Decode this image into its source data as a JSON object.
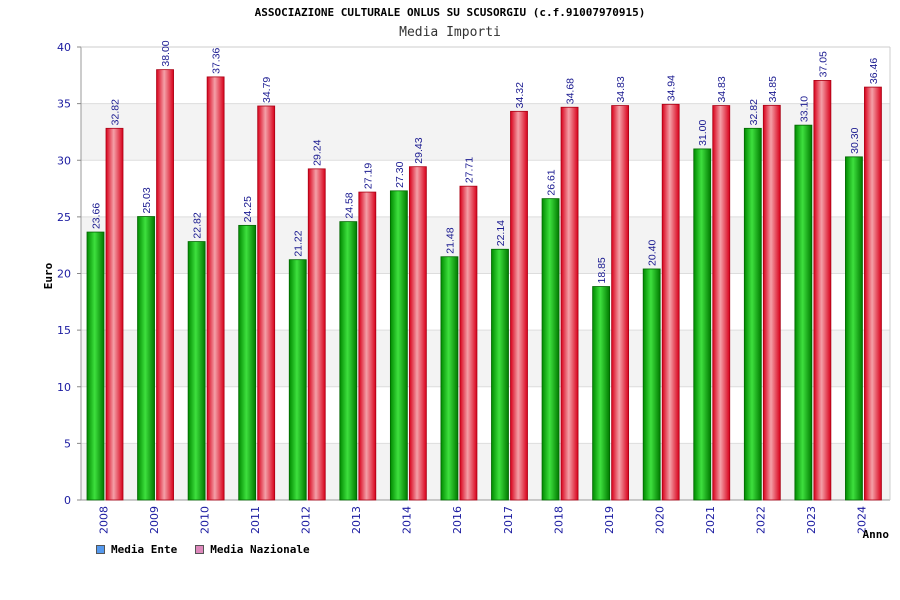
{
  "chart_data": {
    "type": "bar",
    "title": "ASSOCIAZIONE CULTURALE ONLUS SU SCUSORGIU (c.f.91007970915)",
    "subtitle": "Media Importi",
    "xlabel": "Anno",
    "ylabel": "Euro",
    "ylim": [
      0,
      40
    ],
    "yticks": [
      0,
      5,
      10,
      15,
      20,
      25,
      30,
      35,
      40
    ],
    "grid": true,
    "legend_position": "bottom-left",
    "categories": [
      "2008",
      "2009",
      "2010",
      "2011",
      "2012",
      "2013",
      "2014",
      "2016",
      "2017",
      "2018",
      "2019",
      "2020",
      "2021",
      "2022",
      "2023",
      "2024"
    ],
    "series": [
      {
        "name": "Media Ente",
        "color": "#00b000",
        "legend_color": "#5599ee",
        "values": [
          23.66,
          25.03,
          22.82,
          24.25,
          21.22,
          24.58,
          27.3,
          21.48,
          22.14,
          26.61,
          18.85,
          20.4,
          31.0,
          32.82,
          33.1,
          30.3
        ],
        "labels": [
          "23.66",
          "25.03",
          "22.82",
          "24.25",
          "21.22",
          "24.58",
          "27.30",
          "21.48",
          "22.14",
          "26.61",
          "18.85",
          "20.40",
          "31.00",
          "32.82",
          "33.10",
          "30.30"
        ]
      },
      {
        "name": "Media Nazionale",
        "color": "#e8001c",
        "legend_color": "#dd88bb",
        "values": [
          32.82,
          38.0,
          37.36,
          34.79,
          29.24,
          27.19,
          29.43,
          27.71,
          34.32,
          34.68,
          34.83,
          34.94,
          34.83,
          34.85,
          37.05,
          36.46
        ],
        "labels": [
          "32.82",
          "38.00",
          "37.36",
          "34.79",
          "29.24",
          "27.19",
          "29.43",
          "27.71",
          "34.32",
          "34.68",
          "34.83",
          "34.94",
          "34.83",
          "34.85",
          "37.05",
          "36.46"
        ]
      }
    ]
  }
}
